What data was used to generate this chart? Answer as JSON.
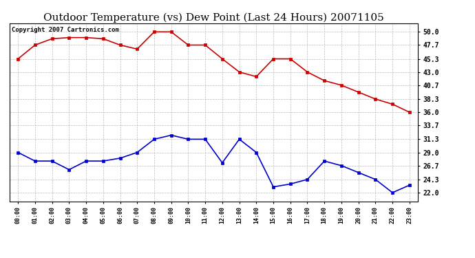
{
  "title": "Outdoor Temperature (vs) Dew Point (Last 24 Hours) 20071105",
  "copyright": "Copyright 2007 Cartronics.com",
  "hours": [
    "00:00",
    "01:00",
    "02:00",
    "03:00",
    "04:00",
    "05:00",
    "06:00",
    "07:00",
    "08:00",
    "09:00",
    "10:00",
    "11:00",
    "12:00",
    "13:00",
    "14:00",
    "15:00",
    "16:00",
    "17:00",
    "18:00",
    "19:00",
    "20:00",
    "21:00",
    "22:00",
    "23:00"
  ],
  "temp": [
    45.3,
    47.7,
    48.8,
    49.0,
    49.0,
    48.8,
    47.7,
    47.0,
    50.0,
    50.0,
    47.7,
    47.7,
    45.3,
    43.0,
    42.2,
    45.3,
    45.3,
    43.0,
    41.5,
    40.7,
    39.5,
    38.3,
    37.4,
    36.0
  ],
  "dew": [
    29.0,
    27.5,
    27.5,
    26.0,
    27.5,
    27.5,
    28.0,
    29.0,
    31.3,
    32.0,
    31.3,
    31.3,
    27.2,
    31.3,
    29.0,
    23.0,
    23.5,
    24.3,
    27.5,
    26.7,
    25.5,
    24.3,
    22.0,
    23.3
  ],
  "temp_color": "#cc0000",
  "dew_color": "#0000cc",
  "bg_color": "#ffffff",
  "grid_color": "#aaaaaa",
  "yticks": [
    22.0,
    24.3,
    26.7,
    29.0,
    31.3,
    33.7,
    36.0,
    38.3,
    40.7,
    43.0,
    45.3,
    47.7,
    50.0
  ],
  "ymin": 20.5,
  "ymax": 51.5,
  "title_fontsize": 11,
  "copyright_fontsize": 6.5,
  "markersize": 3,
  "linewidth": 1.2
}
